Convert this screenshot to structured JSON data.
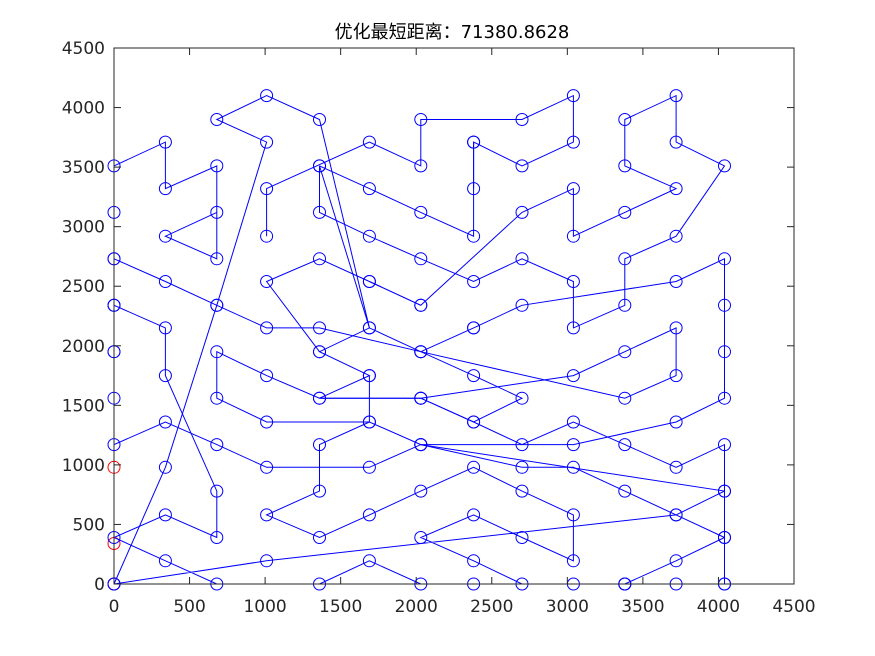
{
  "chart_data": {
    "type": "line",
    "title": "优化最短距离：71380.8628",
    "xlabel": "",
    "ylabel": "",
    "xlim": [
      0,
      4500
    ],
    "ylim": [
      0,
      4500
    ],
    "xticks": [
      0,
      500,
      1000,
      1500,
      2000,
      2500,
      3000,
      3500,
      4000,
      4500
    ],
    "yticks": [
      0,
      500,
      1000,
      1500,
      2000,
      2500,
      3000,
      3500,
      4000,
      4500
    ],
    "grid": false,
    "marker": "circle-open",
    "colors": {
      "route": "#0000ff",
      "highlight": "#ff0000",
      "axes": "#262626"
    },
    "series": [
      {
        "color": "#ff0000",
        "points": [
          [
            0,
            980
          ],
          [
            0,
            340
          ],
          [
            0,
            0
          ]
        ]
      },
      {
        "color": "#0000ff",
        "points": [
          [
            0,
            0
          ],
          [
            1010,
            195
          ],
          [
            3720,
            580
          ],
          [
            4040,
            780
          ],
          [
            4040,
            390
          ],
          [
            3720,
            195
          ],
          [
            3380,
            0
          ],
          [
            2700,
            0
          ],
          [
            2380,
            195
          ],
          [
            2030,
            390
          ],
          [
            2380,
            580
          ],
          [
            2700,
            390
          ],
          [
            3040,
            195
          ],
          [
            3040,
            580
          ],
          [
            2700,
            780
          ],
          [
            2380,
            980
          ],
          [
            2030,
            780
          ],
          [
            1690,
            580
          ],
          [
            1360,
            390
          ],
          [
            1010,
            580
          ],
          [
            1360,
            780
          ],
          [
            1360,
            1170
          ],
          [
            1690,
            1360
          ],
          [
            1690,
            1750
          ],
          [
            1360,
            1950
          ],
          [
            1690,
            2150
          ],
          [
            1360,
            3510
          ],
          [
            1360,
            3120
          ],
          [
            1690,
            2920
          ],
          [
            2030,
            2730
          ],
          [
            2380,
            2540
          ],
          [
            2700,
            2730
          ],
          [
            3040,
            2540
          ],
          [
            3040,
            2150
          ],
          [
            3380,
            2340
          ],
          [
            3380,
            2730
          ],
          [
            3720,
            2920
          ],
          [
            4040,
            3510
          ],
          [
            3720,
            3710
          ],
          [
            3720,
            4100
          ],
          [
            3380,
            3900
          ],
          [
            3380,
            3510
          ],
          [
            3720,
            3320
          ],
          [
            3380,
            3120
          ],
          [
            3040,
            2920
          ],
          [
            3040,
            3320
          ],
          [
            2700,
            3120
          ],
          [
            2030,
            2340
          ],
          [
            1690,
            2540
          ],
          [
            1360,
            2730
          ],
          [
            1010,
            2540
          ],
          [
            1360,
            1950
          ],
          [
            1690,
            1750
          ],
          [
            1360,
            1560
          ],
          [
            2030,
            1560
          ],
          [
            2380,
            1360
          ],
          [
            2700,
            1170
          ],
          [
            3040,
            1360
          ],
          [
            3380,
            1170
          ],
          [
            3720,
            980
          ],
          [
            4040,
            1170
          ],
          [
            4040,
            780
          ],
          [
            2030,
            1170
          ],
          [
            1690,
            980
          ],
          [
            1010,
            980
          ],
          [
            680,
            1170
          ],
          [
            340,
            1360
          ],
          [
            0,
            1170
          ],
          [
            0,
            1560
          ],
          [
            0,
            1950
          ],
          [
            0,
            2340
          ],
          [
            340,
            2150
          ],
          [
            340,
            1750
          ],
          [
            680,
            780
          ],
          [
            680,
            390
          ],
          [
            340,
            580
          ],
          [
            0,
            390
          ],
          [
            340,
            195
          ],
          [
            680,
            0
          ],
          [
            1360,
            0
          ],
          [
            1690,
            195
          ],
          [
            2030,
            0
          ],
          [
            2380,
            0
          ],
          [
            3040,
            0
          ],
          [
            3380,
            0
          ]
        ]
      },
      {
        "color": "#0000ff",
        "points": [
          [
            3380,
            0
          ],
          [
            3720,
            0
          ],
          [
            4040,
            0
          ]
        ]
      },
      {
        "color": "#0000ff",
        "points": [
          [
            0,
            2730
          ],
          [
            340,
            2540
          ],
          [
            680,
            2340
          ],
          [
            1010,
            2150
          ],
          [
            1360,
            2150
          ],
          [
            2030,
            1950
          ],
          [
            2380,
            1750
          ],
          [
            2700,
            1560
          ],
          [
            2380,
            1360
          ],
          [
            2030,
            1560
          ],
          [
            1360,
            1560
          ],
          [
            1010,
            1750
          ],
          [
            680,
            1950
          ],
          [
            680,
            1560
          ],
          [
            1010,
            1360
          ],
          [
            1690,
            1360
          ],
          [
            2030,
            1170
          ],
          [
            2700,
            980
          ],
          [
            3040,
            980
          ],
          [
            3380,
            780
          ],
          [
            3720,
            580
          ],
          [
            4040,
            390
          ],
          [
            4040,
            0
          ]
        ]
      },
      {
        "color": "#0000ff",
        "points": [
          [
            0,
            0
          ],
          [
            340,
            980
          ],
          [
            680,
            2340
          ],
          [
            1010,
            3710
          ],
          [
            680,
            3900
          ],
          [
            1010,
            4100
          ],
          [
            1360,
            3900
          ],
          [
            1690,
            2150
          ],
          [
            2030,
            1950
          ],
          [
            3380,
            1560
          ],
          [
            3720,
            1750
          ],
          [
            3720,
            2150
          ],
          [
            3380,
            1950
          ],
          [
            3040,
            1750
          ],
          [
            2030,
            1560
          ]
        ]
      },
      {
        "color": "#0000ff",
        "points": [
          [
            0,
            2340
          ],
          [
            0,
            2730
          ],
          [
            0,
            3120
          ],
          [
            0,
            3510
          ],
          [
            340,
            3710
          ],
          [
            340,
            3320
          ],
          [
            680,
            3510
          ],
          [
            680,
            2730
          ],
          [
            340,
            2920
          ],
          [
            680,
            3120
          ]
        ]
      },
      {
        "color": "#0000ff",
        "points": [
          [
            1010,
            2920
          ],
          [
            1010,
            3320
          ],
          [
            1690,
            3710
          ],
          [
            2030,
            3510
          ],
          [
            2030,
            3900
          ],
          [
            2700,
            3900
          ],
          [
            3040,
            4100
          ],
          [
            3040,
            3710
          ],
          [
            2700,
            3510
          ],
          [
            2380,
            3710
          ],
          [
            2380,
            2920
          ],
          [
            2030,
            3120
          ],
          [
            1690,
            3320
          ],
          [
            1360,
            3510
          ]
        ]
      },
      {
        "color": "#0000ff",
        "points": [
          [
            2380,
            3320
          ],
          [
            2380,
            3710
          ]
        ]
      },
      {
        "color": "#0000ff",
        "points": [
          [
            1690,
            2540
          ],
          [
            2030,
            2340
          ]
        ]
      },
      {
        "color": "#0000ff",
        "points": [
          [
            2380,
            2150
          ],
          [
            2700,
            2340
          ],
          [
            3720,
            2540
          ],
          [
            4040,
            2730
          ],
          [
            4040,
            2340
          ],
          [
            4040,
            1950
          ],
          [
            4040,
            1560
          ],
          [
            3720,
            1360
          ],
          [
            3040,
            1170
          ],
          [
            2030,
            1170
          ]
        ]
      },
      {
        "color": "#0000ff",
        "points": [
          [
            2030,
            1950
          ],
          [
            2380,
            2150
          ]
        ]
      },
      {
        "color": "#0000ff",
        "points": [
          [
            0,
            2340
          ],
          [
            0,
            1950
          ]
        ]
      }
    ]
  }
}
